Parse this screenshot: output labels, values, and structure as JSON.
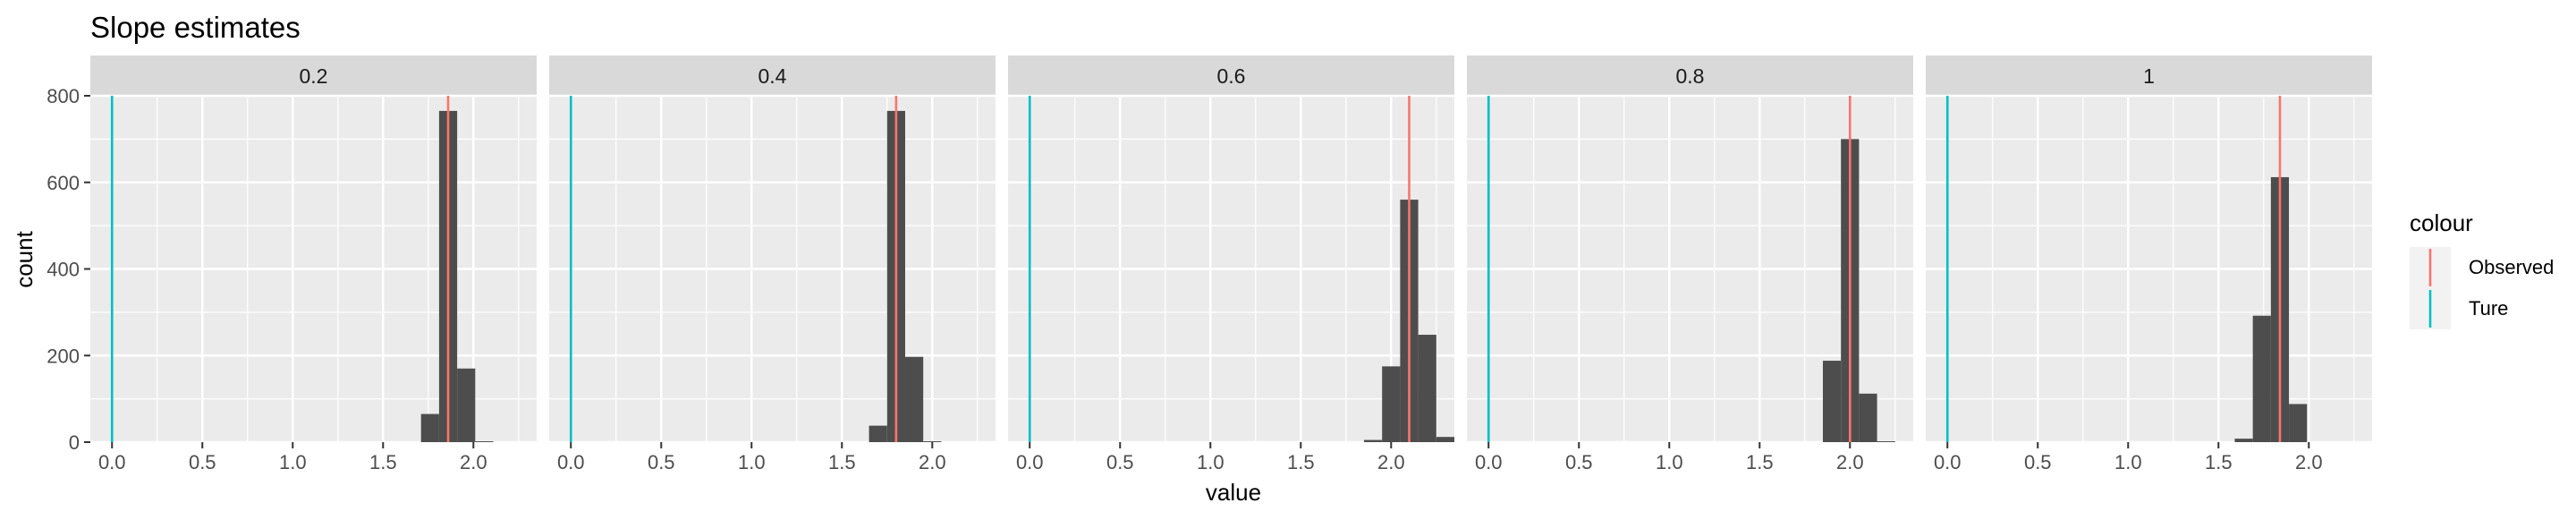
{
  "chart_data": {
    "type": "bar",
    "title": "Slope estimates",
    "xlabel": "value",
    "ylabel": "count",
    "ylim": [
      0,
      800
    ],
    "xlim": [
      -0.12,
      2.35
    ],
    "yticks": [
      0,
      200,
      400,
      600,
      800
    ],
    "xticks": [
      0.0,
      0.5,
      1.0,
      1.5,
      2.0
    ],
    "xtick_labels": [
      "0.0",
      "0.5",
      "1.0",
      "1.5",
      "2.0"
    ],
    "bin_width": 0.1,
    "grid": true,
    "legend": {
      "title": "colour",
      "placement": "right",
      "entries": [
        {
          "label": "Observed",
          "color": "#F8766D"
        },
        {
          "label": "Ture",
          "color": "#00BFC4"
        }
      ]
    },
    "colors": {
      "bar": "#4D4D4D",
      "panel": "#EBEBEB",
      "strip": "#D9D9D9",
      "observed": "#F8766D",
      "true": "#00BFC4"
    },
    "facets": [
      {
        "label": "0.2",
        "true_value": 0.0,
        "observed_value": 1.86,
        "bins": [
          {
            "x": 1.76,
            "count": 65
          },
          {
            "x": 1.86,
            "count": 765
          },
          {
            "x": 1.96,
            "count": 170
          },
          {
            "x": 2.06,
            "count": 2
          }
        ]
      },
      {
        "label": "0.4",
        "true_value": 0.0,
        "observed_value": 1.8,
        "bins": [
          {
            "x": 1.7,
            "count": 38
          },
          {
            "x": 1.8,
            "count": 765
          },
          {
            "x": 1.9,
            "count": 197
          },
          {
            "x": 2.0,
            "count": 2
          }
        ]
      },
      {
        "label": "0.6",
        "true_value": 0.0,
        "observed_value": 2.1,
        "bins": [
          {
            "x": 1.9,
            "count": 5
          },
          {
            "x": 2.0,
            "count": 175
          },
          {
            "x": 2.1,
            "count": 560
          },
          {
            "x": 2.2,
            "count": 248
          },
          {
            "x": 2.3,
            "count": 12
          }
        ]
      },
      {
        "label": "0.8",
        "true_value": 0.0,
        "observed_value": 2.0,
        "bins": [
          {
            "x": 1.9,
            "count": 188
          },
          {
            "x": 2.0,
            "count": 700
          },
          {
            "x": 2.1,
            "count": 112
          },
          {
            "x": 2.2,
            "count": 2
          }
        ]
      },
      {
        "label": "1",
        "true_value": 0.0,
        "observed_value": 1.84,
        "bins": [
          {
            "x": 1.64,
            "count": 8
          },
          {
            "x": 1.74,
            "count": 292
          },
          {
            "x": 1.84,
            "count": 612
          },
          {
            "x": 1.94,
            "count": 88
          }
        ]
      }
    ]
  }
}
